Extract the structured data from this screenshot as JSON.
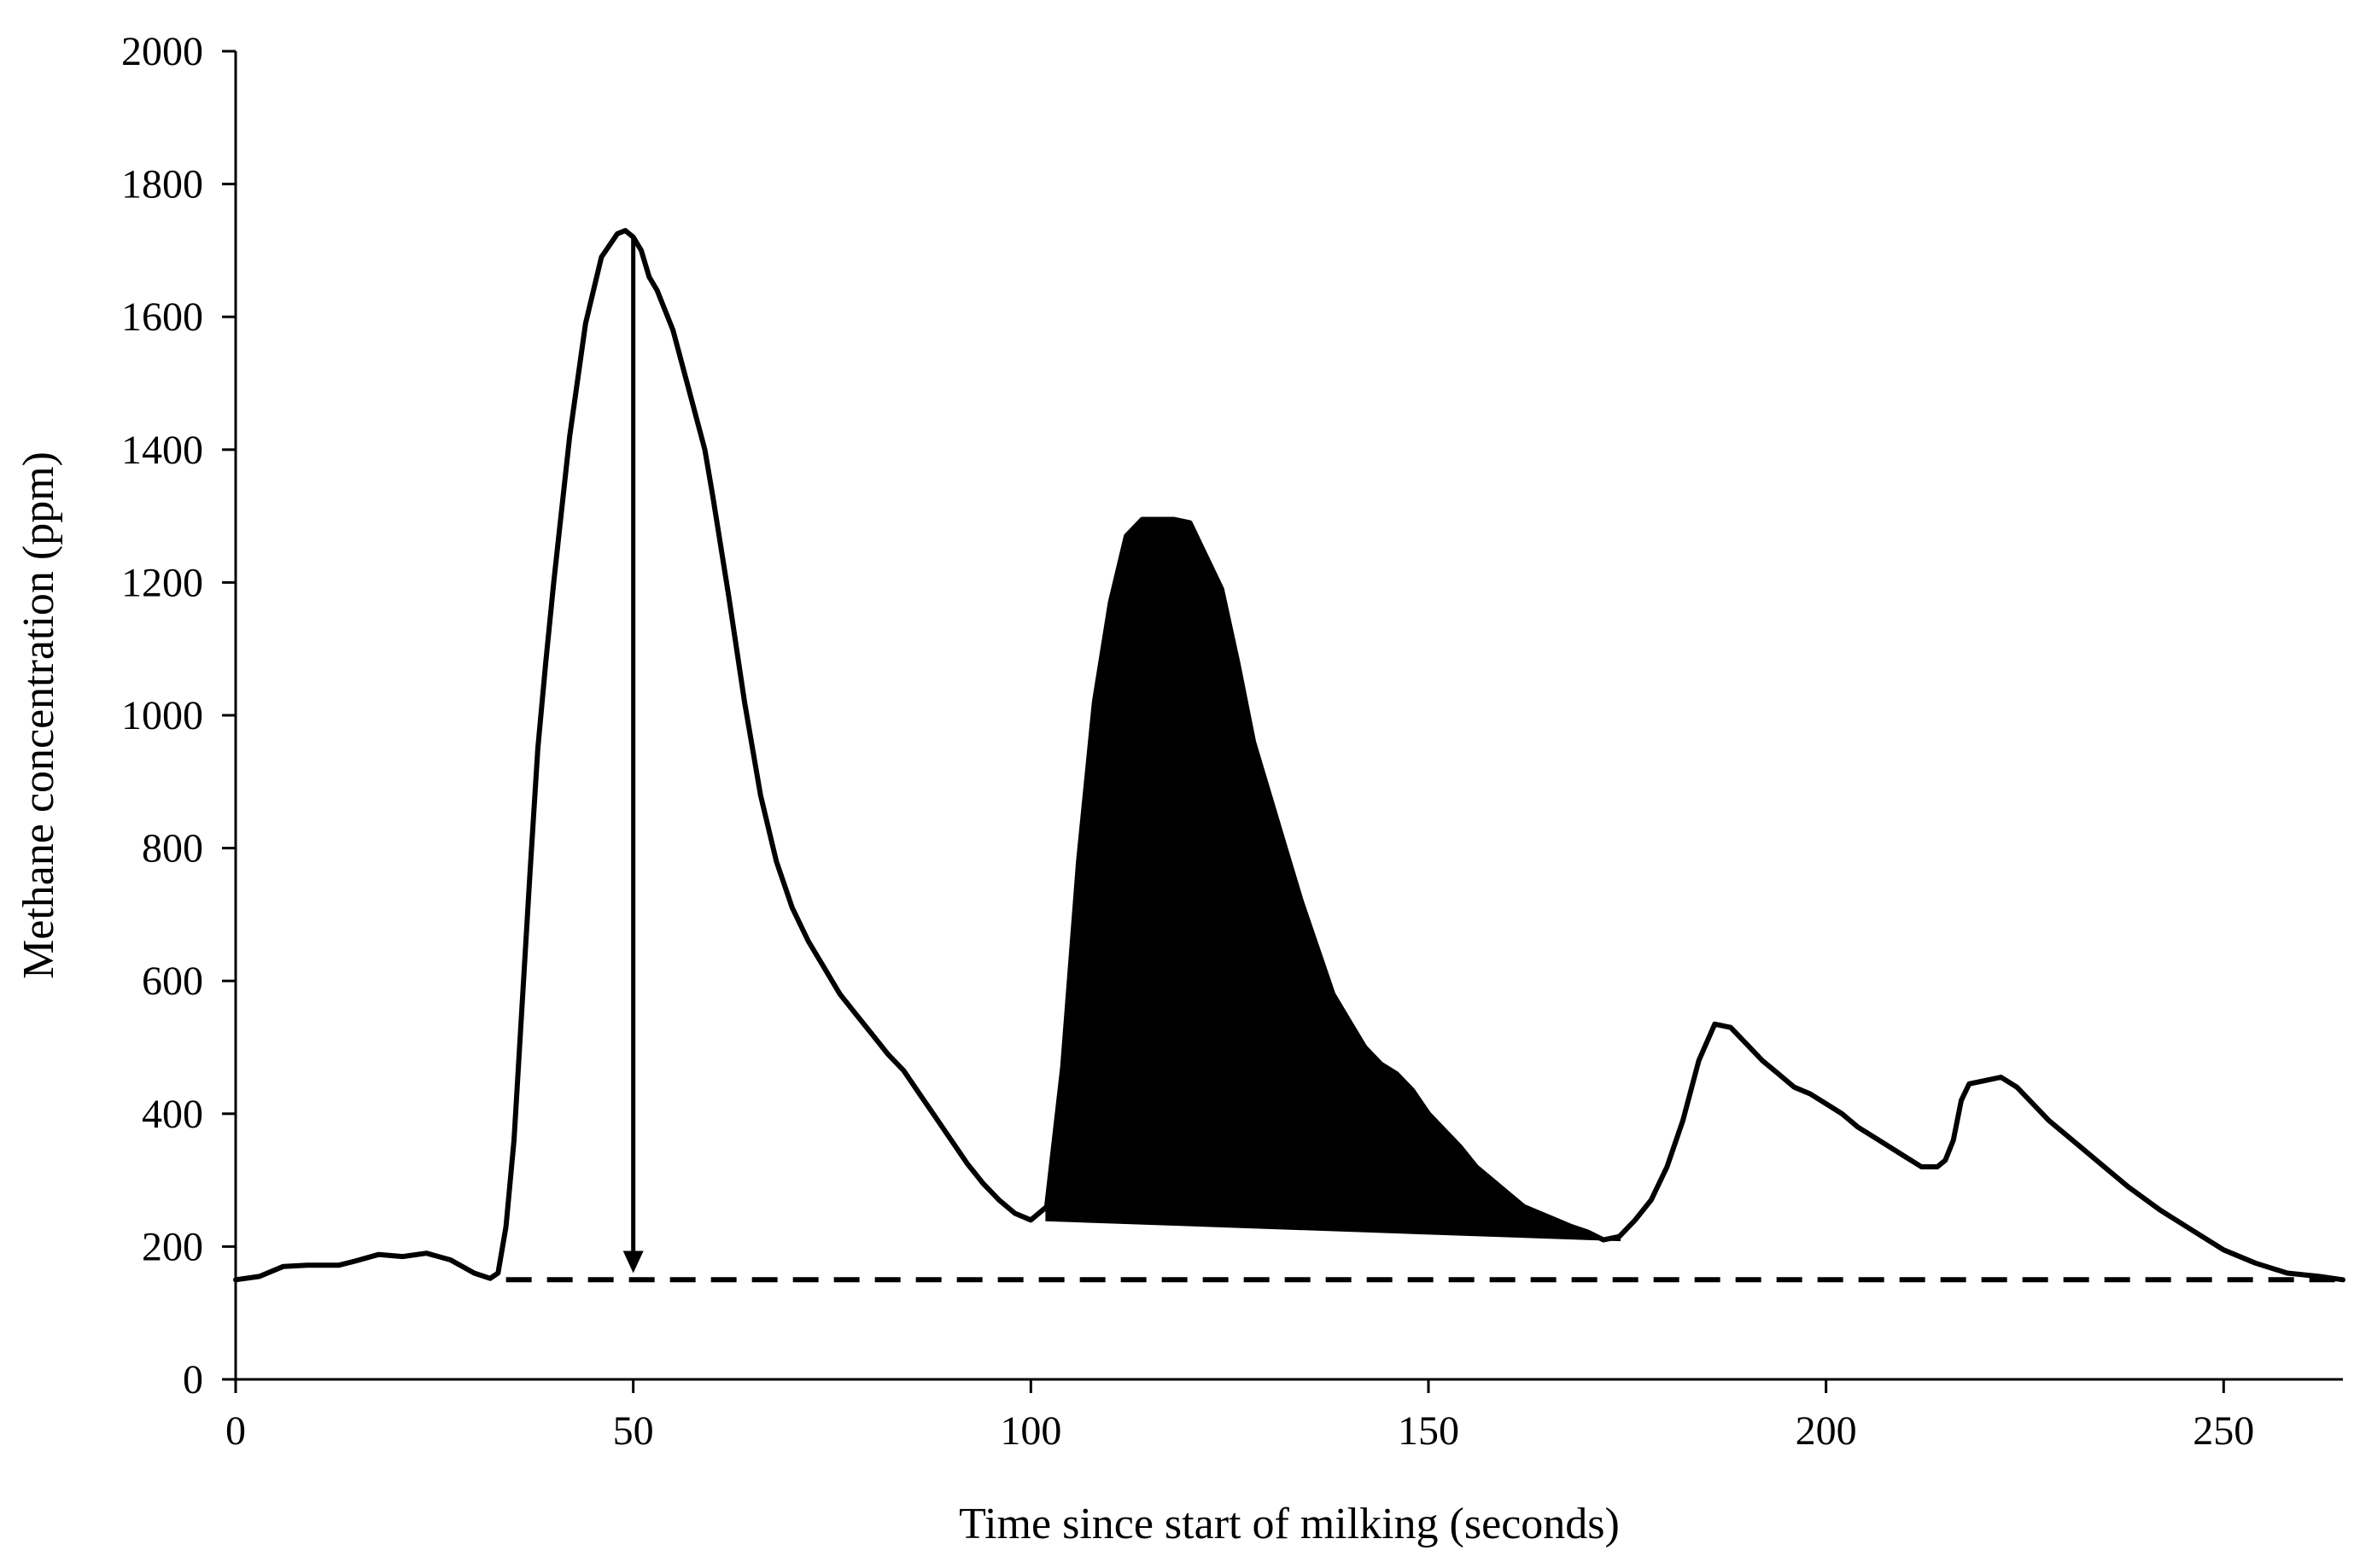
{
  "chart_data": {
    "type": "line",
    "title": "",
    "xlabel": "Time since start of milking (seconds)",
    "ylabel": "Methane concentration (ppm)",
    "xlim": [
      0,
      265
    ],
    "ylim": [
      0,
      2000
    ],
    "xticks": [
      0,
      50,
      100,
      150,
      200,
      250
    ],
    "yticks": [
      0,
      200,
      400,
      600,
      800,
      1000,
      1200,
      1400,
      1600,
      1800,
      2000
    ],
    "grid": false,
    "legend": "none",
    "series": [
      {
        "type": "line",
        "style": "solid",
        "color": "#000000",
        "x": [
          0,
          3,
          6,
          9,
          13,
          15,
          18,
          21,
          24,
          27,
          30,
          32,
          33,
          34,
          35,
          36,
          37,
          38,
          39,
          40,
          42,
          44,
          46,
          48,
          49,
          50,
          51,
          52,
          53,
          55,
          57,
          59,
          60,
          62,
          64,
          66,
          68,
          70,
          72,
          74,
          76,
          78,
          80,
          82,
          84,
          86,
          88,
          90,
          92,
          94,
          96,
          98,
          100,
          102,
          104,
          106,
          108,
          110,
          112,
          114,
          116,
          118,
          120,
          124,
          126,
          128,
          130,
          132,
          134,
          136,
          138,
          140,
          142,
          144,
          146,
          148,
          150,
          152,
          154,
          156,
          158,
          160,
          162,
          164,
          166,
          168,
          170,
          172,
          174,
          176,
          178,
          180,
          182,
          184,
          186,
          188,
          190,
          192,
          194,
          196,
          198,
          200,
          202,
          204,
          206,
          208,
          210,
          212,
          214,
          215,
          216,
          217,
          218,
          220,
          222,
          224,
          226,
          228,
          230,
          234,
          238,
          242,
          246,
          250,
          254,
          258,
          262,
          265
        ],
        "y": [
          150,
          155,
          170,
          172,
          172,
          178,
          188,
          185,
          190,
          180,
          160,
          152,
          160,
          230,
          360,
          560,
          760,
          950,
          1080,
          1200,
          1420,
          1590,
          1690,
          1725,
          1730,
          1720,
          1700,
          1660,
          1640,
          1580,
          1490,
          1400,
          1330,
          1180,
          1020,
          880,
          780,
          710,
          660,
          620,
          580,
          550,
          520,
          490,
          465,
          430,
          395,
          360,
          325,
          295,
          270,
          250,
          240,
          260,
          470,
          780,
          1020,
          1170,
          1270,
          1295,
          1295,
          1295,
          1290,
          1190,
          1080,
          960,
          880,
          800,
          720,
          650,
          580,
          540,
          500,
          475,
          460,
          435,
          400,
          375,
          350,
          320,
          300,
          280,
          260,
          250,
          240,
          230,
          222,
          210,
          215,
          240,
          270,
          320,
          390,
          480,
          535,
          530,
          505,
          480,
          460,
          440,
          430,
          415,
          400,
          380,
          365,
          350,
          335,
          320,
          320,
          330,
          360,
          420,
          445,
          450,
          455,
          440,
          415,
          390,
          370,
          330,
          290,
          255,
          225,
          195,
          175,
          160,
          155,
          150
        ]
      },
      {
        "type": "baseline",
        "style": "dashed",
        "color": "#000000",
        "x": [
          34,
          265
        ],
        "y": [
          150,
          150
        ]
      }
    ],
    "shaded_area": {
      "color": "#000000",
      "x_start": 102,
      "x_end": 174,
      "base_start": 240,
      "base_end": 210
    },
    "annotations": [
      {
        "type": "arrow",
        "x": 50,
        "y_from": 1720,
        "y_to": 160
      }
    ]
  }
}
